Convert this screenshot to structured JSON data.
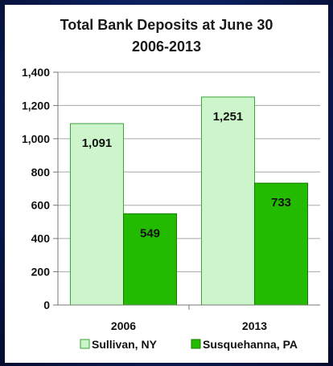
{
  "chart_data": {
    "type": "bar",
    "title": "Total Bank Deposits at June 30",
    "subtitle": "2006-2013",
    "categories": [
      "2006",
      "2013"
    ],
    "series": [
      {
        "name": "Sullivan, NY",
        "values": [
          1091,
          1251
        ],
        "color": "#ccf5cc",
        "stroke": "#3aa33a"
      },
      {
        "name": "Susquehanna, PA",
        "values": [
          549,
          733
        ],
        "color": "#22bb00",
        "stroke": "#1a7a00"
      }
    ],
    "data_labels": [
      [
        "1,091",
        "1,251"
      ],
      [
        "549",
        "733"
      ]
    ],
    "yticks": [
      "0",
      "200",
      "400",
      "600",
      "800",
      "1,000",
      "1,200",
      "1,400"
    ],
    "ylim": [
      0,
      1400
    ],
    "legend_position": "bottom",
    "grid": true
  }
}
